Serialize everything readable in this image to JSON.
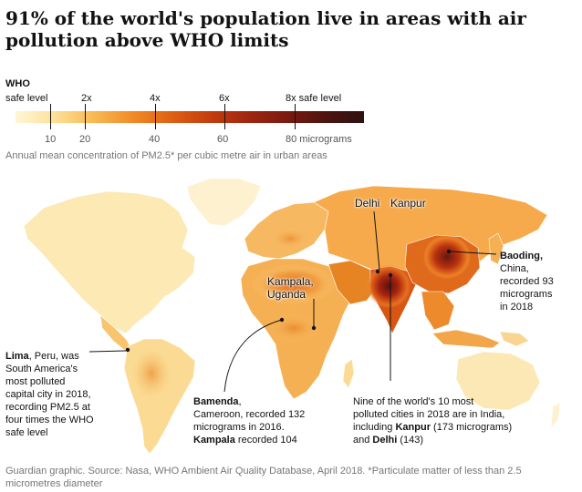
{
  "title": "91% of the world's population live in areas with air pollution above WHO limits",
  "legend": {
    "who_label_line1": "WHO",
    "who_label_line2": "safe level",
    "multiples": [
      "2x",
      "4x",
      "6x",
      "8x safe level"
    ],
    "values": [
      "10",
      "20",
      "40",
      "60",
      "80 micrograms"
    ],
    "scale_min": 0,
    "scale_max": 100,
    "tick_values": [
      10,
      20,
      40,
      60,
      80
    ]
  },
  "subtitle": "Annual mean concentration of PM2.5* per cubic metre air in urban areas",
  "map_labels": {
    "delhi": "Delhi",
    "kanpur": "Kanpur",
    "kampala_1": "Kampala,",
    "kampala_2": "Uganda"
  },
  "annotations": {
    "baoding": {
      "city": "Baoding,",
      "l1": "China,",
      "l2": "recorded 93",
      "l3": "micrograms",
      "l4": "in 2018"
    },
    "lima": {
      "city": "Lima",
      "l1": ", Peru, was",
      "l2": "South America's",
      "l3": "most polluted",
      "l4": "capital city in 2018,",
      "l5": "recording PM2.5 at",
      "l6": "four times the WHO",
      "l7": "safe level"
    },
    "bamenda": {
      "city": "Bamenda",
      "city_suffix": ",",
      "l1": "Cameroon, recorded 132",
      "l2": "micrograms in 2016.",
      "city2": "Kampala",
      "l3": " recorded 104"
    },
    "india": {
      "l1": "Nine of the world's 10 most",
      "l2": "polluted cities in 2018 are in India,",
      "l3a": "including ",
      "kanpur": "Kanpur",
      "l3b": " (173 micrograms)",
      "l4a": "and ",
      "delhi": "Delhi",
      "l4b": " (143)"
    }
  },
  "footer": "Guardian graphic. Source: Nasa, WHO Ambient Air Quality Database, April 2018. *Particulate matter of less than 2.5 micrometres diameter"
}
